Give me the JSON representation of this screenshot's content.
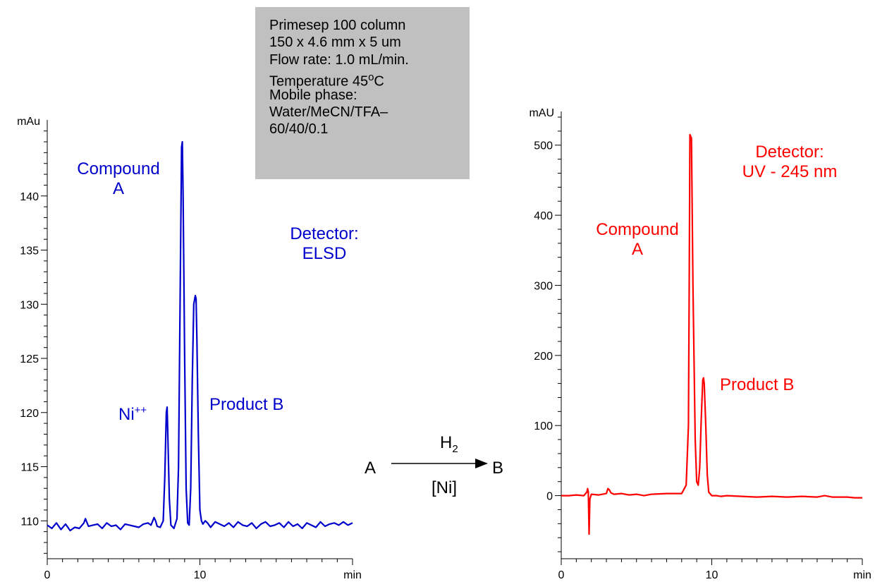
{
  "infobox": {
    "lines": [
      "Primesep 100 column",
      " 150 x 4.6 mm x 5 um",
      "Flow rate: 1.0 mL/min.",
      "Temperature 45",
      "Mobile phase:",
      "Water/MeCN/TFA–",
      "60/40/0.1"
    ],
    "temp_degree": "o",
    "temp_unit": "C"
  },
  "reaction": {
    "reactant": "A",
    "product": "B",
    "reagent_main": "H",
    "reagent_sub": "2",
    "catalyst": "[Ni]"
  },
  "colors": {
    "left_trace": "#0000cc",
    "right_trace": "#ff0000",
    "infobox_bg": "#c0c0c0"
  },
  "chart_data": [
    {
      "type": "line",
      "ylabel": "mAu",
      "xunit": "min",
      "xlim": [
        0,
        20
      ],
      "ylim": [
        106.5,
        146.5
      ],
      "xticks": [
        0,
        10
      ],
      "yticks": [
        110,
        115,
        120,
        125,
        130,
        135,
        140
      ],
      "color": "#0000cc",
      "annotations": {
        "peak_a": [
          "Compound",
          "A"
        ],
        "ni_base": "Ni",
        "ni_sup": "++",
        "peak_b": "Product B",
        "detector": [
          "Detector:",
          "ELSD"
        ]
      },
      "series": [
        {
          "x": [
            0,
            0.3,
            0.6,
            0.9,
            1.2,
            1.5,
            1.8,
            2.1,
            2.4,
            2.5,
            2.7,
            3.0,
            3.3,
            3.6,
            3.9,
            4.2,
            4.5,
            4.8,
            5.1,
            5.4,
            5.7,
            6.0,
            6.3,
            6.6,
            6.8,
            7.0,
            7.1,
            7.2,
            7.4,
            7.6,
            7.7,
            7.8,
            7.85,
            7.9,
            8.0,
            8.1,
            8.3,
            8.5,
            8.6,
            8.7,
            8.8,
            8.85,
            8.9,
            9.0,
            9.1,
            9.2,
            9.3,
            9.4,
            9.5,
            9.6,
            9.7,
            9.75,
            9.8,
            9.9,
            10.0,
            10.1,
            10.2,
            10.35,
            10.5,
            10.7,
            11.0,
            11.3,
            11.6,
            11.9,
            12.2,
            12.5,
            12.8,
            13.1,
            13.4,
            13.7,
            14.0,
            14.3,
            14.6,
            14.9,
            15.2,
            15.5,
            15.8,
            16.1,
            16.4,
            16.7,
            17.0,
            17.3,
            17.6,
            17.9,
            18.2,
            18.5,
            18.8,
            19.1,
            19.4,
            19.7,
            20.0
          ],
          "y": [
            109.6,
            109.3,
            109.8,
            109.2,
            109.7,
            109.1,
            109.4,
            109.3,
            109.8,
            110.2,
            109.5,
            109.6,
            109.7,
            109.3,
            109.8,
            109.5,
            109.6,
            109.2,
            109.7,
            109.6,
            109.5,
            109.4,
            109.7,
            109.8,
            109.6,
            110.3,
            110.0,
            109.5,
            109.4,
            110.0,
            114.0,
            120.0,
            120.5,
            118.0,
            112.0,
            109.6,
            109.3,
            110.2,
            115.0,
            130.0,
            144.5,
            145.0,
            140.0,
            125.0,
            113.0,
            109.8,
            109.6,
            113.0,
            123.0,
            130.0,
            130.8,
            130.5,
            127.0,
            118.0,
            111.0,
            110.0,
            109.7,
            110.0,
            109.8,
            109.4,
            109.9,
            109.7,
            109.5,
            109.8,
            109.4,
            109.9,
            109.6,
            109.5,
            109.8,
            109.3,
            109.7,
            109.9,
            109.5,
            109.6,
            109.8,
            109.4,
            109.9,
            109.5,
            109.7,
            109.3,
            109.8,
            109.6,
            109.4,
            109.9,
            109.5,
            109.7,
            109.8,
            109.6,
            109.9,
            109.6,
            109.8
          ]
        }
      ]
    },
    {
      "type": "line",
      "ylabel": "mAU",
      "xunit": "min",
      "xlim": [
        0,
        20
      ],
      "ylim": [
        -90,
        540
      ],
      "xticks": [
        0,
        10
      ],
      "yticks": [
        0,
        100,
        200,
        300,
        400,
        500
      ],
      "color": "#ff0000",
      "annotations": {
        "peak_a": [
          "Compound",
          "A"
        ],
        "peak_b": "Product B",
        "detector": [
          "Detector:",
          "UV - 245 nm"
        ]
      },
      "series": [
        {
          "x": [
            0,
            0.5,
            1.0,
            1.5,
            1.7,
            1.75,
            1.8,
            1.85,
            1.9,
            2.0,
            2.5,
            3.0,
            3.1,
            3.2,
            3.3,
            3.5,
            4.0,
            4.5,
            5.0,
            5.5,
            6.0,
            7.0,
            8.0,
            8.3,
            8.45,
            8.5,
            8.55,
            8.65,
            8.75,
            8.9,
            9.0,
            9.1,
            9.2,
            9.3,
            9.4,
            9.45,
            9.5,
            9.6,
            9.7,
            9.8,
            10.0,
            10.3,
            10.6,
            11.0,
            12.0,
            13.0,
            14.0,
            15.0,
            16.0,
            17.0,
            17.5,
            18.0,
            19.0,
            19.5,
            20.0
          ],
          "y": [
            0,
            0,
            1,
            0,
            5,
            10,
            5,
            -55,
            -5,
            2,
            1,
            3,
            10,
            8,
            4,
            2,
            3,
            1,
            2,
            0,
            2,
            3,
            3,
            15,
            100,
            300,
            515,
            510,
            300,
            80,
            20,
            15,
            40,
            110,
            165,
            168,
            160,
            100,
            30,
            5,
            0,
            0,
            -1,
            0,
            -1,
            -2,
            -1,
            -2,
            -1,
            -2,
            0,
            -2,
            -2,
            -3,
            -3
          ]
        }
      ]
    }
  ]
}
